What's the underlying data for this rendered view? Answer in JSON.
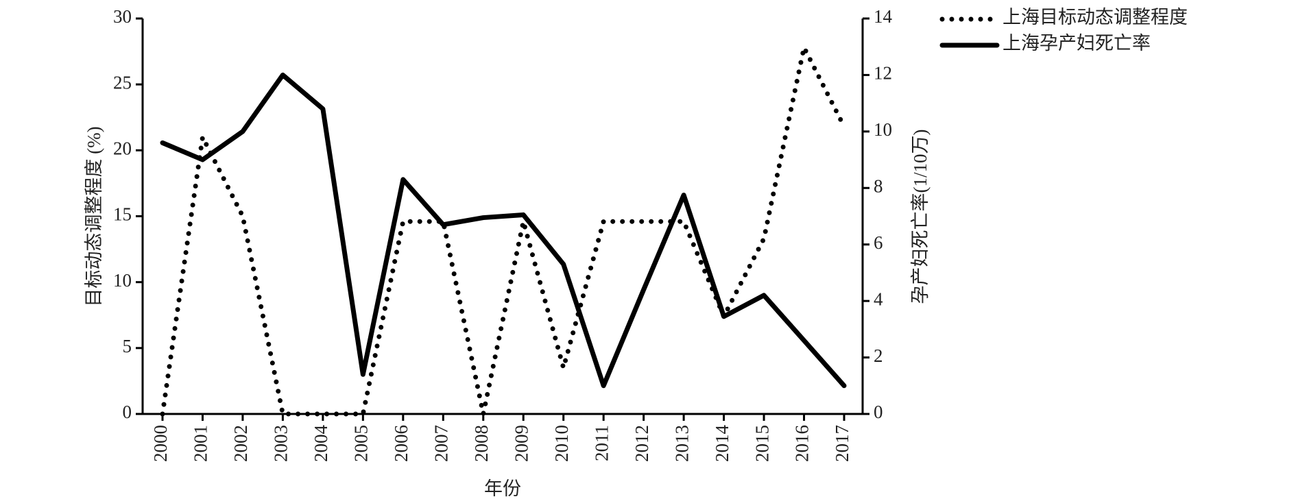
{
  "chart_data": {
    "type": "line",
    "xlabel": "年份",
    "ylabel": "目标动态调整程度 (%)",
    "y2label": "孕产妇死亡率(1/10万)",
    "categories": [
      "2000",
      "2001",
      "2002",
      "2003",
      "2004",
      "2005",
      "2006",
      "2007",
      "2008",
      "2009",
      "2010",
      "2011",
      "2012",
      "2013",
      "2014",
      "2015",
      "2016",
      "2017"
    ],
    "series": [
      {
        "name": "上海目标动态调整程度",
        "color": "#000000",
        "style": "dotted",
        "axis": "y",
        "values": [
          0,
          21,
          15,
          0,
          0,
          0,
          14.6,
          14.6,
          0,
          14.6,
          3.5,
          14.6,
          14.6,
          14.6,
          7.4,
          13.3,
          27.8,
          21.8
        ]
      },
      {
        "name": "上海孕产妇死亡率",
        "color": "#000000",
        "style": "solid",
        "axis": "y2",
        "values": [
          9.6,
          9.0,
          10.0,
          12.0,
          10.8,
          1.4,
          8.3,
          6.7,
          6.95,
          7.05,
          5.3,
          1.0,
          4.4,
          7.75,
          3.45,
          4.2,
          2.6,
          1.0
        ]
      }
    ],
    "ylim": [
      0,
      30
    ],
    "yticks": [
      0,
      5,
      10,
      15,
      20,
      25,
      30
    ],
    "y2lim": [
      0,
      14
    ],
    "y2ticks": [
      0,
      2,
      4,
      6,
      8,
      10,
      12,
      14
    ],
    "legend": "top-right"
  }
}
